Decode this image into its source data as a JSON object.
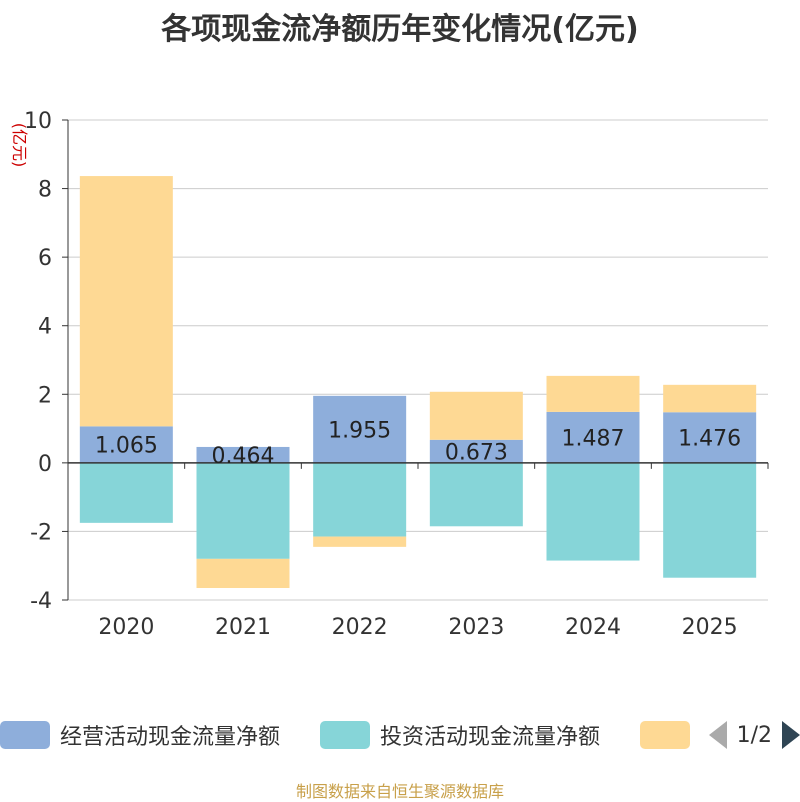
{
  "chart_data": {
    "type": "bar",
    "stacked": true,
    "title": "各项现金流净额历年变化情况(亿元)",
    "ylabel": "(亿元)",
    "ylim": [
      -4,
      10
    ],
    "yticks": [
      -4,
      -2,
      0,
      2,
      4,
      6,
      8,
      10
    ],
    "categories": [
      "2020",
      "2021",
      "2022",
      "2023",
      "2024",
      "2025"
    ],
    "series": [
      {
        "name": "经营活动现金流量净额",
        "color": "#8eaedb",
        "values": [
          1.065,
          0.464,
          1.955,
          0.673,
          1.487,
          1.476
        ]
      },
      {
        "name": "投资活动现金流量净额",
        "color": "#86d5d8",
        "values": [
          -1.75,
          -2.8,
          -2.15,
          -1.85,
          -2.85,
          -3.35
        ]
      },
      {
        "name": "",
        "color": "#fed994",
        "values": [
          7.3,
          -0.85,
          -0.3,
          1.4,
          1.05,
          0.8
        ]
      }
    ],
    "data_labels": [
      "1.065",
      "0.464",
      "1.955",
      "0.673",
      "1.487",
      "1.476"
    ],
    "legend_position": "bottom",
    "grid": true
  },
  "legend": {
    "items": [
      {
        "label": "经营活动现金流量净额",
        "color": "#8eaedb"
      },
      {
        "label": "投资活动现金流量净额",
        "color": "#86d5d8"
      },
      {
        "label": "",
        "color": "#fed994"
      }
    ],
    "page_text": "1/2"
  },
  "source_text": "制图数据来自恒生聚源数据库"
}
